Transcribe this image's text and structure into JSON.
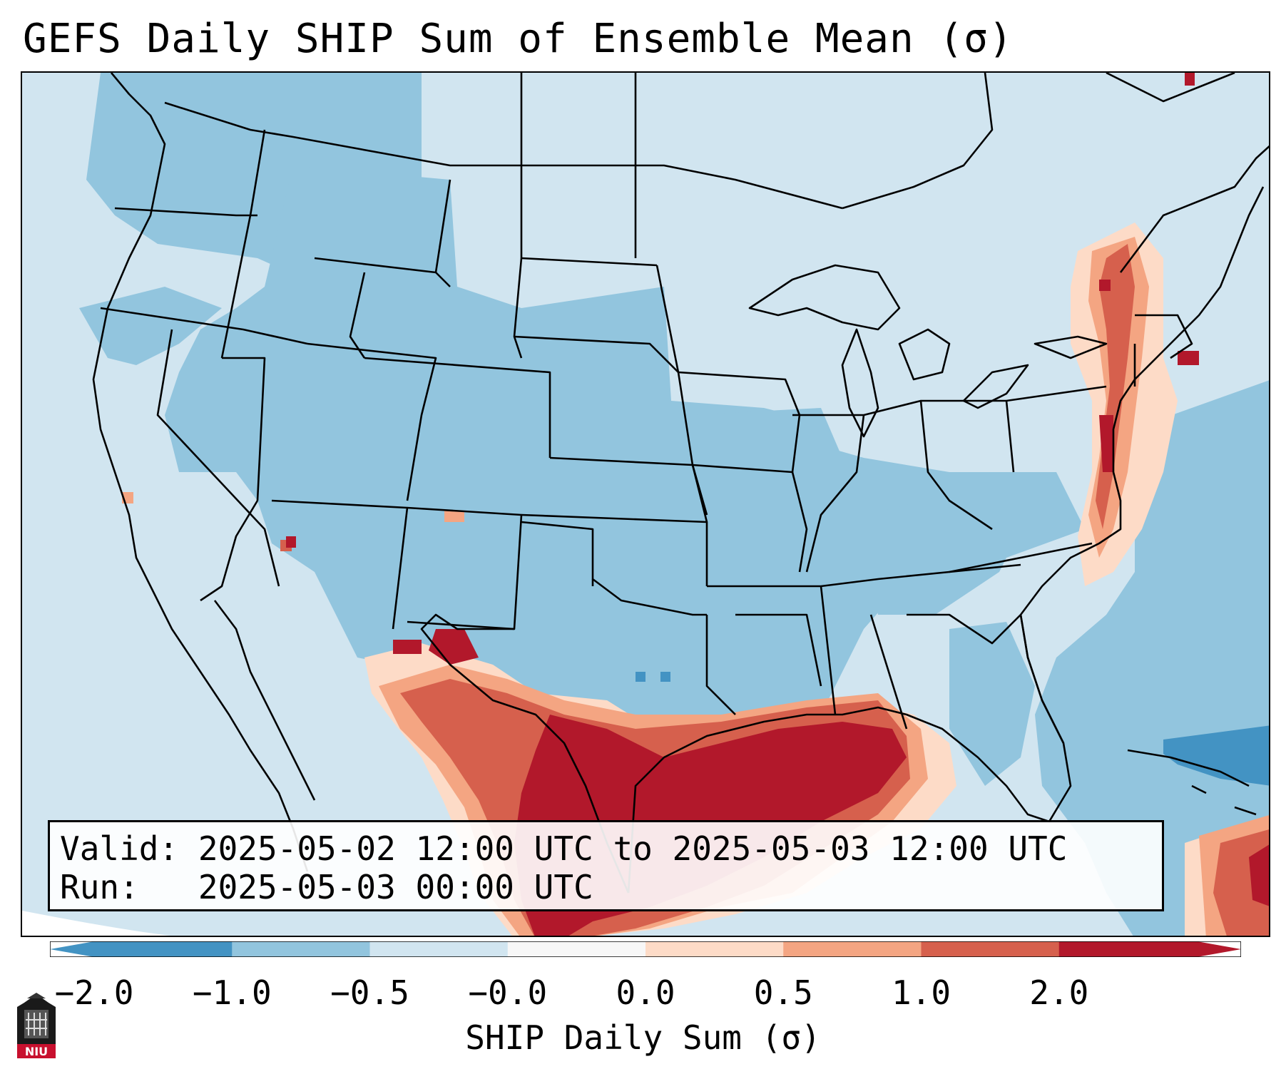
{
  "title": "GEFS Daily SHIP Sum of Ensemble Mean (σ)",
  "info": {
    "valid_label": "Valid:",
    "valid_value": "2025-05-02 12:00 UTC to 2025-05-03 12:00 UTC",
    "run_label": "Run:",
    "run_value": "2025-05-03 00:00 UTC"
  },
  "colorbar": {
    "label": "SHIP Daily Sum (σ)",
    "ticks": [
      "−2.0",
      "−1.0",
      "−0.5",
      "−0.0",
      "0.0",
      "0.5",
      "1.0",
      "2.0"
    ],
    "colors": [
      "#4393c3",
      "#92c5de",
      "#d1e5f0",
      "#f7f7f7",
      "#fddbc7",
      "#f4a582",
      "#d6604d",
      "#b2182b"
    ],
    "extend": "both"
  },
  "logo": {
    "text": "NIU"
  }
}
